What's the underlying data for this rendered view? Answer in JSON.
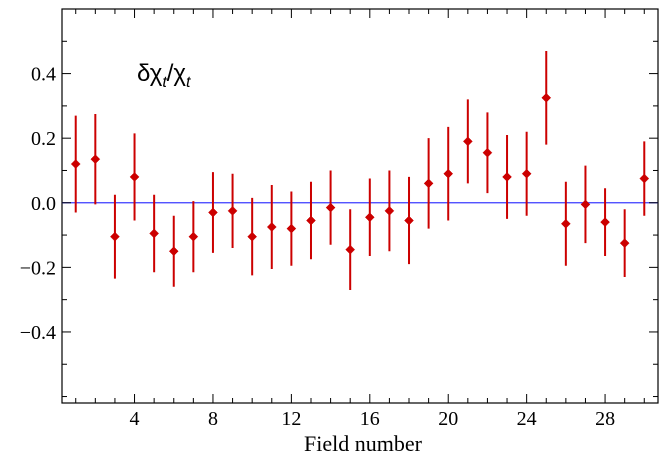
{
  "chart_data": {
    "type": "scatter",
    "xlabel": "Field number",
    "ylabel": "",
    "xlim": [
      0.3,
      30.7
    ],
    "ylim": [
      -0.62,
      0.6
    ],
    "xticks": [
      4,
      8,
      12,
      16,
      20,
      24,
      28
    ],
    "xtick_labels": [
      "4",
      "8",
      "12",
      "16",
      "20",
      "24",
      "28"
    ],
    "yticks": [
      -0.4,
      -0.2,
      0.0,
      0.2,
      0.4
    ],
    "ytick_labels": [
      "−0.4",
      "−0.2",
      "0.0",
      "0.2",
      "0.4"
    ],
    "annotation": {
      "main": "δχ",
      "sub": "t",
      "slash": "/χ",
      "sub2": "t"
    },
    "reference_line": {
      "y": 0.0,
      "color": "#3b3bff"
    },
    "marker_color": "#cc0000",
    "grid": false,
    "x": [
      1,
      2,
      3,
      4,
      5,
      6,
      7,
      8,
      9,
      10,
      11,
      12,
      13,
      14,
      15,
      16,
      17,
      18,
      19,
      20,
      21,
      22,
      23,
      24,
      25,
      26,
      27,
      28,
      29,
      30
    ],
    "y": [
      0.12,
      0.135,
      -0.105,
      0.08,
      -0.095,
      -0.15,
      -0.105,
      -0.03,
      -0.025,
      -0.105,
      -0.075,
      -0.08,
      -0.055,
      -0.015,
      -0.145,
      -0.045,
      -0.025,
      -0.055,
      0.06,
      0.09,
      0.19,
      0.155,
      0.08,
      0.09,
      0.325,
      -0.065,
      -0.005,
      -0.06,
      -0.125,
      0.075
    ],
    "err": [
      0.15,
      0.14,
      0.13,
      0.135,
      0.12,
      0.11,
      0.11,
      0.125,
      0.115,
      0.12,
      0.13,
      0.115,
      0.12,
      0.115,
      0.125,
      0.12,
      0.125,
      0.135,
      0.14,
      0.145,
      0.13,
      0.125,
      0.13,
      0.13,
      0.145,
      0.13,
      0.12,
      0.105,
      0.105,
      0.115
    ]
  }
}
